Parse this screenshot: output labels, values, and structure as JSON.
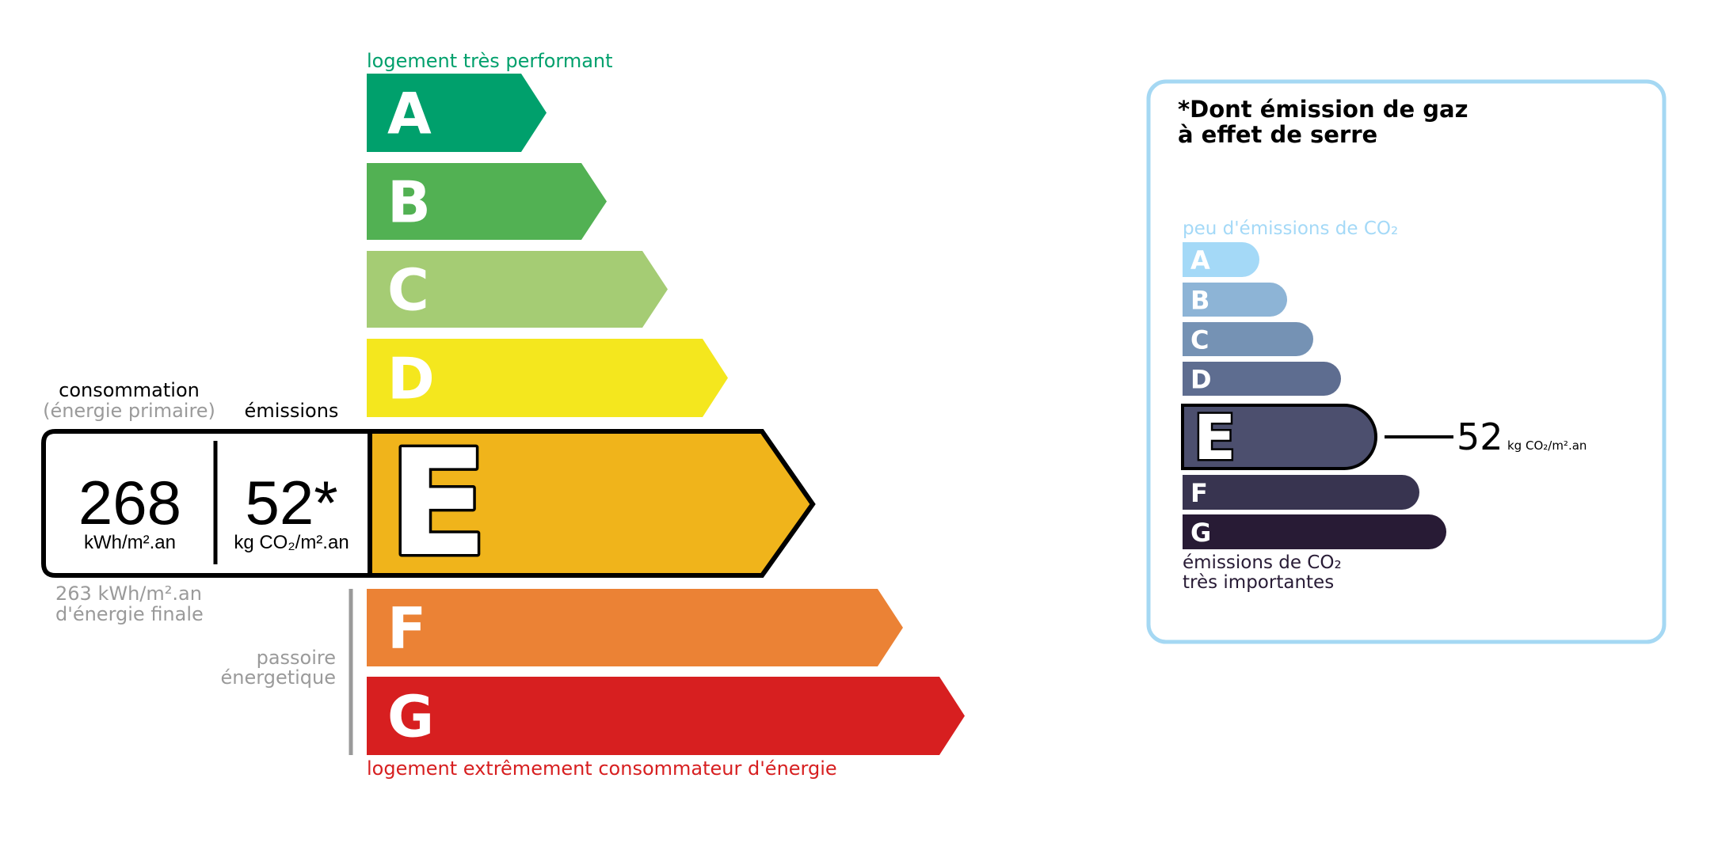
{
  "energy": {
    "top_label": "logement très performant",
    "bottom_label": "logement extrêmement consommateur d'énergie",
    "classes": [
      {
        "letter": "A",
        "color": "#00a06c"
      },
      {
        "letter": "B",
        "color": "#52b153"
      },
      {
        "letter": "C",
        "color": "#a5cc74"
      },
      {
        "letter": "D",
        "color": "#f4e71e"
      },
      {
        "letter": "E",
        "color": "#f0b41b"
      },
      {
        "letter": "F",
        "color": "#eb8235"
      },
      {
        "letter": "G",
        "color": "#d71f20"
      }
    ],
    "current_class": "E",
    "consumption_label": "consommation",
    "consumption_sublabel": "(énergie primaire)",
    "emissions_label": "émissions",
    "consumption_value": "268",
    "consumption_unit": "kWh/m².an",
    "emissions_value": "52*",
    "emissions_unit": "kg CO₂/m².an",
    "final_energy_line1": "263 kWh/m².an",
    "final_energy_line2": "d'énergie finale",
    "passoire_line1": "passoire",
    "passoire_line2": "énergetique",
    "top_color": "#00a06c",
    "bottom_color": "#d71f20"
  },
  "ges": {
    "title_line1": "*Dont émission de gaz",
    "title_line2": "à effet de serre",
    "top_label": "peu d'émissions de CO₂",
    "bottom_label_line1": "émissions de CO₂",
    "bottom_label_line2": "très importantes",
    "classes": [
      {
        "letter": "A",
        "color": "#a4d9f7"
      },
      {
        "letter": "B",
        "color": "#8db4d6"
      },
      {
        "letter": "C",
        "color": "#7592b4"
      },
      {
        "letter": "D",
        "color": "#5e6d90"
      },
      {
        "letter": "E",
        "color": "#4c4f6e"
      },
      {
        "letter": "F",
        "color": "#383450"
      },
      {
        "letter": "G",
        "color": "#281b35"
      }
    ],
    "current_class": "E",
    "value": "52",
    "unit": "kg CO₂/m².an",
    "border_color": "#a5d8f3"
  }
}
